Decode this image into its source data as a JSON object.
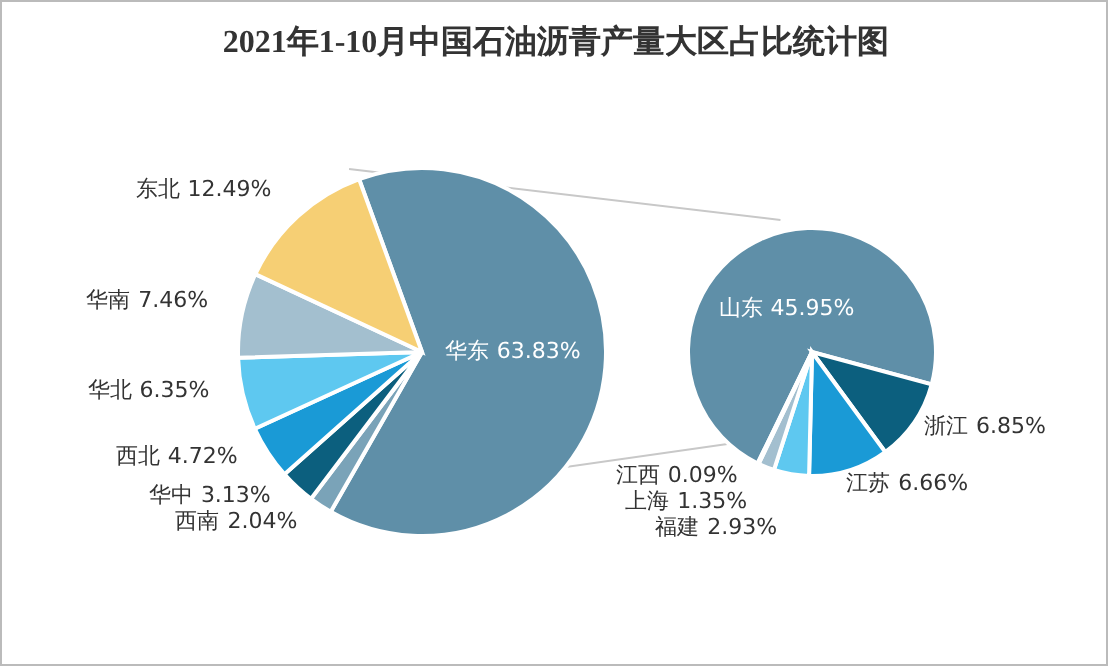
{
  "chart_data": [
    {
      "type": "pie",
      "title": "2021年1-10月中国石油沥青产量大区占比统计图",
      "categories": [
        "华东",
        "西南",
        "华中",
        "西北",
        "华北",
        "华南",
        "东北"
      ],
      "values": [
        63.83,
        2.04,
        3.13,
        4.72,
        6.35,
        7.46,
        12.49
      ],
      "colors": [
        "#5f8fa8",
        "#7aa3b8",
        "#0c5f7e",
        "#1a9ad6",
        "#5ec8f0",
        "#a3bfcf",
        "#f6cf74"
      ],
      "value_labels": [
        "63.83%",
        "2.04%",
        "3.13%",
        "4.72%",
        "6.35%",
        "7.46%",
        "12.49%"
      ],
      "legend": false
    },
    {
      "type": "pie",
      "categories": [
        "山东",
        "浙江",
        "江苏",
        "福建",
        "上海",
        "江西"
      ],
      "values": [
        45.95,
        6.85,
        6.66,
        2.93,
        1.35,
        0.09
      ],
      "colors": [
        "#5f8fa8",
        "#0c5f7e",
        "#1a9ad6",
        "#5ec8f0",
        "#a3bfcf",
        "#b5d8d0"
      ],
      "value_labels": [
        "45.95%",
        "6.85%",
        "6.66%",
        "2.93%",
        "1.35%",
        "0.09%"
      ],
      "legend": false
    }
  ]
}
